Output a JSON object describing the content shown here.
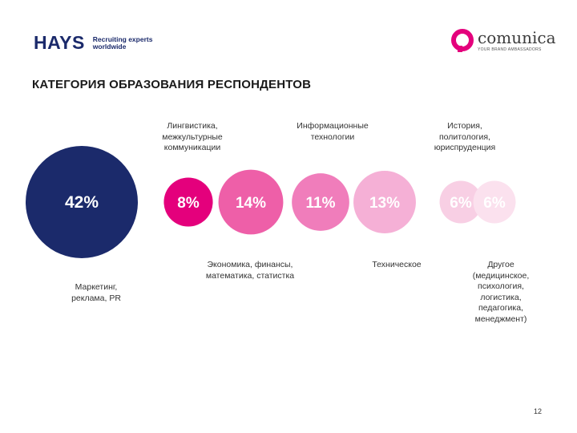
{
  "header": {
    "hays_logo": "HAYS",
    "hays_tagline": "Recruiting experts worldwide",
    "comunica_logo": "comunica",
    "comunica_tagline": "YOUR BRAND AMBASSADORS",
    "accent_color": "#e4007c"
  },
  "chart_data": {
    "type": "bubble",
    "title": "КАТЕГОРИЯ ОБРАЗОВАНИЯ РЕСПОНДЕНТОВ",
    "series": [
      {
        "label": "Маркетинг,\nреклама, PR",
        "value": 42,
        "value_label": "42%",
        "color": "#1b2a6b",
        "text_color": "#ffffff"
      },
      {
        "label": "Лингвистика,\nмежкультурные\nкоммуникации",
        "value": 8,
        "value_label": "8%",
        "color": "#e4007c",
        "text_color": "#ffffff"
      },
      {
        "label": "Экономика, финансы,\nматематика, статистка",
        "value": 14,
        "value_label": "14%",
        "color": "#ee5fa8",
        "text_color": "#ffffff"
      },
      {
        "label": "Информационные\nтехнологии",
        "value": 11,
        "value_label": "11%",
        "color": "#f07dbb",
        "text_color": "#ffffff"
      },
      {
        "label": "Техническое",
        "value": 13,
        "value_label": "13%",
        "color": "#f5b0d6",
        "text_color": "#ffffff"
      },
      {
        "label": "История,\nполитология,\nюриспруденция",
        "value": 6,
        "value_label": "6%",
        "color": "#f8cfe4",
        "text_color": "#ffffff"
      },
      {
        "label": "Другое\n(медицинское,\nпсихология,\nлогистика,\nпедагогика,\nменеджмент)",
        "value": 6,
        "value_label": "6%",
        "color": "#fbe1ee",
        "text_color": "#ffffff"
      }
    ]
  },
  "footer": {
    "page_number": "12"
  }
}
